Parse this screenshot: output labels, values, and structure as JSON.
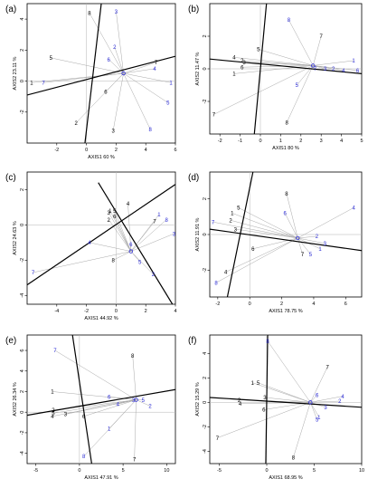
{
  "figure": {
    "colors": {
      "black": "#000000",
      "blue": "#2b2bd6",
      "grey": "#a8a8a8",
      "gridline": "#b5b5b5"
    }
  },
  "chart_data": [
    {
      "panel_label": "(a)",
      "type": "scatter",
      "xlabel": "AXIS1 60 %",
      "ylabel": "AXIS2 23.11 %",
      "xlim": [
        -4,
        6
      ],
      "ylim": [
        -4,
        5
      ],
      "xticks": [
        "-2",
        "0",
        "2",
        "4",
        "6"
      ],
      "yticks": [
        "-2",
        "0",
        "2",
        "4"
      ],
      "origin_marker": [
        2.5,
        0.5
      ],
      "axes_lines": [
        {
          "x1": -4,
          "y1": -0.9,
          "x2": 6,
          "y2": 1.6
        },
        {
          "x1": -0.1,
          "y1": -4,
          "x2": 1.0,
          "y2": 5
        }
      ],
      "series": [
        {
          "color": "black",
          "points": [
            {
              "label": "1",
              "x": -3.7,
              "y": -0.1
            },
            {
              "label": "5",
              "x": -2.4,
              "y": 1.5
            },
            {
              "label": "2",
              "x": -0.7,
              "y": -2.7
            },
            {
              "label": "8",
              "x": 0.2,
              "y": 4.4
            },
            {
              "label": "6",
              "x": 1.3,
              "y": -0.7
            },
            {
              "label": "3",
              "x": 1.8,
              "y": -3.2
            },
            {
              "label": "7",
              "x": 4.7,
              "y": 1.2
            }
          ]
        },
        {
          "color": "blue",
          "points": [
            {
              "label": "7",
              "x": -2.9,
              "y": -0.1
            },
            {
              "label": "3",
              "x": 2.0,
              "y": 4.5
            },
            {
              "label": "2",
              "x": 1.9,
              "y": 2.2
            },
            {
              "label": "6",
              "x": 1.5,
              "y": 1.4
            },
            {
              "label": "4",
              "x": 4.6,
              "y": 0.8
            },
            {
              "label": "1",
              "x": 5.7,
              "y": -0.1
            },
            {
              "label": "5",
              "x": 5.5,
              "y": -1.4
            },
            {
              "label": "8",
              "x": 4.3,
              "y": -3.1
            }
          ]
        }
      ]
    },
    {
      "panel_label": "(b)",
      "type": "scatter",
      "xlabel": "AXIS1 80 %",
      "ylabel": "AXIS2 11.47 %",
      "xlim": [
        -2.5,
        5
      ],
      "ylim": [
        -4,
        4
      ],
      "xticks": [
        "-2",
        "-1",
        "0",
        "1",
        "2",
        "3",
        "4",
        "5"
      ],
      "yticks": [
        "-2",
        "0",
        "2"
      ],
      "origin_marker": [
        2.6,
        0.2
      ],
      "axes_lines": [
        {
          "x1": -2.5,
          "y1": 0.6,
          "x2": 5,
          "y2": -0.3
        },
        {
          "x1": -0.3,
          "y1": -4,
          "x2": 0.3,
          "y2": 4
        }
      ],
      "series": [
        {
          "color": "black",
          "points": [
            {
              "label": "4",
              "x": -1.3,
              "y": 0.7
            },
            {
              "label": "2",
              "x": -0.9,
              "y": 0.5
            },
            {
              "label": "3",
              "x": -0.8,
              "y": 0.4
            },
            {
              "label": "6",
              "x": -0.9,
              "y": 0.1
            },
            {
              "label": "1",
              "x": -1.3,
              "y": -0.3
            },
            {
              "label": "5",
              "x": -0.1,
              "y": 1.2
            },
            {
              "label": "7",
              "x": 3.0,
              "y": 2.0
            },
            {
              "label": "8",
              "x": 1.3,
              "y": -3.3
            },
            {
              "label": "7",
              "x": -2.3,
              "y": -2.8
            }
          ]
        },
        {
          "color": "blue",
          "points": [
            {
              "label": "8",
              "x": 1.4,
              "y": 3.0
            },
            {
              "label": "1",
              "x": 4.6,
              "y": 0.5
            },
            {
              "label": "5",
              "x": 1.8,
              "y": -1.0
            },
            {
              "label": "7",
              "x": 2.7,
              "y": 0.0
            },
            {
              "label": "2",
              "x": 3.6,
              "y": 0.0
            },
            {
              "label": "4",
              "x": 4.1,
              "y": -0.1
            },
            {
              "label": "6",
              "x": 4.8,
              "y": -0.1
            },
            {
              "label": "3",
              "x": 3.2,
              "y": 0.0
            }
          ]
        }
      ]
    },
    {
      "panel_label": "(c)",
      "type": "scatter",
      "xlabel": "AXIS1 44.92 %",
      "ylabel": "AXIS2 24.63 %",
      "xlim": [
        -6,
        4
      ],
      "ylim": [
        -4.5,
        3
      ],
      "xticks": [
        "-4",
        "-2",
        "0",
        "2",
        "4"
      ],
      "yticks": [
        "-4",
        "-2",
        "0",
        "2"
      ],
      "origin_marker": [
        1.0,
        -1.5
      ],
      "axes_lines": [
        {
          "x1": -6,
          "y1": -3.4,
          "x2": 4,
          "y2": 2.3
        },
        {
          "x1": -1.2,
          "y1": 2.4,
          "x2": 3.8,
          "y2": -4.5
        }
      ],
      "series": [
        {
          "color": "black",
          "points": [
            {
              "label": "3",
              "x": -0.5,
              "y": 0.7
            },
            {
              "label": "1",
              "x": -0.4,
              "y": 0.8
            },
            {
              "label": "5",
              "x": -0.1,
              "y": 0.8
            },
            {
              "label": "6",
              "x": -0.1,
              "y": 0.5
            },
            {
              "label": "2",
              "x": -0.5,
              "y": 0.3
            },
            {
              "label": "4",
              "x": 0.8,
              "y": 1.2
            },
            {
              "label": "8",
              "x": -0.2,
              "y": -2.0
            },
            {
              "label": "7",
              "x": 2.6,
              "y": 0.2
            }
          ]
        },
        {
          "color": "blue",
          "points": [
            {
              "label": "1",
              "x": 2.9,
              "y": 0.6
            },
            {
              "label": "8",
              "x": 3.4,
              "y": 0.3
            },
            {
              "label": "3",
              "x": 3.9,
              "y": -0.5
            },
            {
              "label": "6",
              "x": 1.0,
              "y": -1.1
            },
            {
              "label": "4",
              "x": -1.8,
              "y": -1.0
            },
            {
              "label": "7",
              "x": -5.6,
              "y": -2.7
            },
            {
              "label": "5",
              "x": 1.6,
              "y": -2.1
            },
            {
              "label": "2",
              "x": 2.5,
              "y": -2.8
            }
          ]
        }
      ]
    },
    {
      "panel_label": "(d)",
      "type": "scatter",
      "xlabel": "AXIS1 78.75 %",
      "ylabel": "AXIS2 11.91 %",
      "xlim": [
        -2.5,
        7
      ],
      "ylim": [
        -3.5,
        3.5
      ],
      "xticks": [
        "-2",
        "0",
        "2",
        "4",
        "6"
      ],
      "yticks": [
        "-2",
        "0",
        "2"
      ],
      "origin_marker": [
        3.0,
        -0.2
      ],
      "axes_lines": [
        {
          "x1": -2.5,
          "y1": 0.3,
          "x2": 7,
          "y2": -0.9
        },
        {
          "x1": -1.4,
          "y1": -3.5,
          "x2": 0.2,
          "y2": 3.5
        }
      ],
      "series": [
        {
          "color": "black",
          "points": [
            {
              "label": "8",
              "x": 2.3,
              "y": 2.3
            },
            {
              "label": "5",
              "x": -0.7,
              "y": 1.5
            },
            {
              "label": "1",
              "x": -1.1,
              "y": 1.2
            },
            {
              "label": "2",
              "x": -1.2,
              "y": 0.8
            },
            {
              "label": "3",
              "x": -0.9,
              "y": 0.3
            },
            {
              "label": "6",
              "x": 0.2,
              "y": -0.8
            },
            {
              "label": "7",
              "x": 3.3,
              "y": -1.1
            },
            {
              "label": "4",
              "x": -1.5,
              "y": -2.1
            }
          ]
        },
        {
          "color": "blue",
          "points": [
            {
              "label": "7",
              "x": -2.3,
              "y": 0.7
            },
            {
              "label": "6",
              "x": 2.2,
              "y": 1.2
            },
            {
              "label": "4",
              "x": 6.5,
              "y": 1.5
            },
            {
              "label": "2",
              "x": 4.2,
              "y": -0.1
            },
            {
              "label": "3",
              "x": 4.7,
              "y": -0.5
            },
            {
              "label": "1",
              "x": 4.4,
              "y": -0.8
            },
            {
              "label": "5",
              "x": 3.8,
              "y": -1.1
            },
            {
              "label": "8",
              "x": -2.1,
              "y": -2.7
            }
          ]
        }
      ]
    },
    {
      "panel_label": "(e)",
      "type": "scatter",
      "xlabel": "AXIS1 47.91 %",
      "ylabel": "AXIS2 26.34 %",
      "xlim": [
        -6,
        11
      ],
      "ylim": [
        -5,
        7.5
      ],
      "xticks": [
        "-5",
        "0",
        "5",
        "10"
      ],
      "yticks": [
        "-4",
        "-2",
        "0",
        "2",
        "4",
        "6"
      ],
      "origin_marker": [
        6.5,
        1.2
      ],
      "axes_lines": [
        {
          "x1": -6,
          "y1": -0.3,
          "x2": 11,
          "y2": 2.2
        },
        {
          "x1": -0.8,
          "y1": 7.5,
          "x2": 1.4,
          "y2": -5
        }
      ],
      "series": [
        {
          "color": "black",
          "points": [
            {
              "label": "8",
              "x": 6.1,
              "y": 5.5
            },
            {
              "label": "1",
              "x": -3.1,
              "y": 2.0
            },
            {
              "label": "2",
              "x": -3.0,
              "y": 0.2
            },
            {
              "label": "5",
              "x": -3.0,
              "y": -0.1
            },
            {
              "label": "4",
              "x": -3.1,
              "y": -0.4
            },
            {
              "label": "3",
              "x": -1.6,
              "y": -0.2
            },
            {
              "label": "6",
              "x": 0.5,
              "y": -0.4
            },
            {
              "label": "7",
              "x": 6.3,
              "y": -4.6
            }
          ]
        },
        {
          "color": "blue",
          "points": [
            {
              "label": "7",
              "x": -2.8,
              "y": 6.0
            },
            {
              "label": "6",
              "x": 3.4,
              "y": 1.5
            },
            {
              "label": "3",
              "x": 6.2,
              "y": 1.2
            },
            {
              "label": "5",
              "x": 7.3,
              "y": 1.2
            },
            {
              "label": "2",
              "x": 8.1,
              "y": 0.6
            },
            {
              "label": "4",
              "x": 4.4,
              "y": 0.8
            },
            {
              "label": "1",
              "x": 3.4,
              "y": -1.6
            },
            {
              "label": "8",
              "x": 0.5,
              "y": -4.3
            }
          ]
        }
      ]
    },
    {
      "panel_label": "(f)",
      "type": "scatter",
      "xlabel": "AXIS1 68.95 %",
      "ylabel": "AXIS2 15.29 %",
      "xlim": [
        -6,
        10
      ],
      "ylim": [
        -5,
        5.5
      ],
      "xticks": [
        "-5",
        "0",
        "5",
        "10"
      ],
      "yticks": [
        "-4",
        "-2",
        "0",
        "2",
        "4"
      ],
      "origin_marker": [
        4.6,
        0.0
      ],
      "axes_lines": [
        {
          "x1": -6,
          "y1": 0.4,
          "x2": 10,
          "y2": -0.4
        },
        {
          "x1": 0.1,
          "y1": 5.5,
          "x2": -0.1,
          "y2": -5
        }
      ],
      "series": [
        {
          "color": "black",
          "points": [
            {
              "label": "1",
              "x": -1.5,
              "y": 1.6
            },
            {
              "label": "5",
              "x": -0.9,
              "y": 1.6
            },
            {
              "label": "2",
              "x": -2.9,
              "y": 0.2
            },
            {
              "label": "4",
              "x": -2.8,
              "y": -0.1
            },
            {
              "label": "3",
              "x": -0.2,
              "y": 0.4
            },
            {
              "label": "6",
              "x": -0.3,
              "y": -0.6
            },
            {
              "label": "7",
              "x": 6.4,
              "y": 2.9
            },
            {
              "label": "7",
              "x": -5.2,
              "y": -2.9
            },
            {
              "label": "8",
              "x": 2.8,
              "y": -4.5
            }
          ]
        },
        {
          "color": "blue",
          "points": [
            {
              "label": "8",
              "x": 0.1,
              "y": 5.0
            },
            {
              "label": "6",
              "x": 5.3,
              "y": 0.6
            },
            {
              "label": "4",
              "x": 8.0,
              "y": 0.5
            },
            {
              "label": "2",
              "x": 7.7,
              "y": 0.1
            },
            {
              "label": "3",
              "x": 6.2,
              "y": -0.4
            },
            {
              "label": "5",
              "x": 5.3,
              "y": -1.4
            },
            {
              "label": "1",
              "x": 5.5,
              "y": -1.2
            }
          ]
        }
      ]
    }
  ]
}
